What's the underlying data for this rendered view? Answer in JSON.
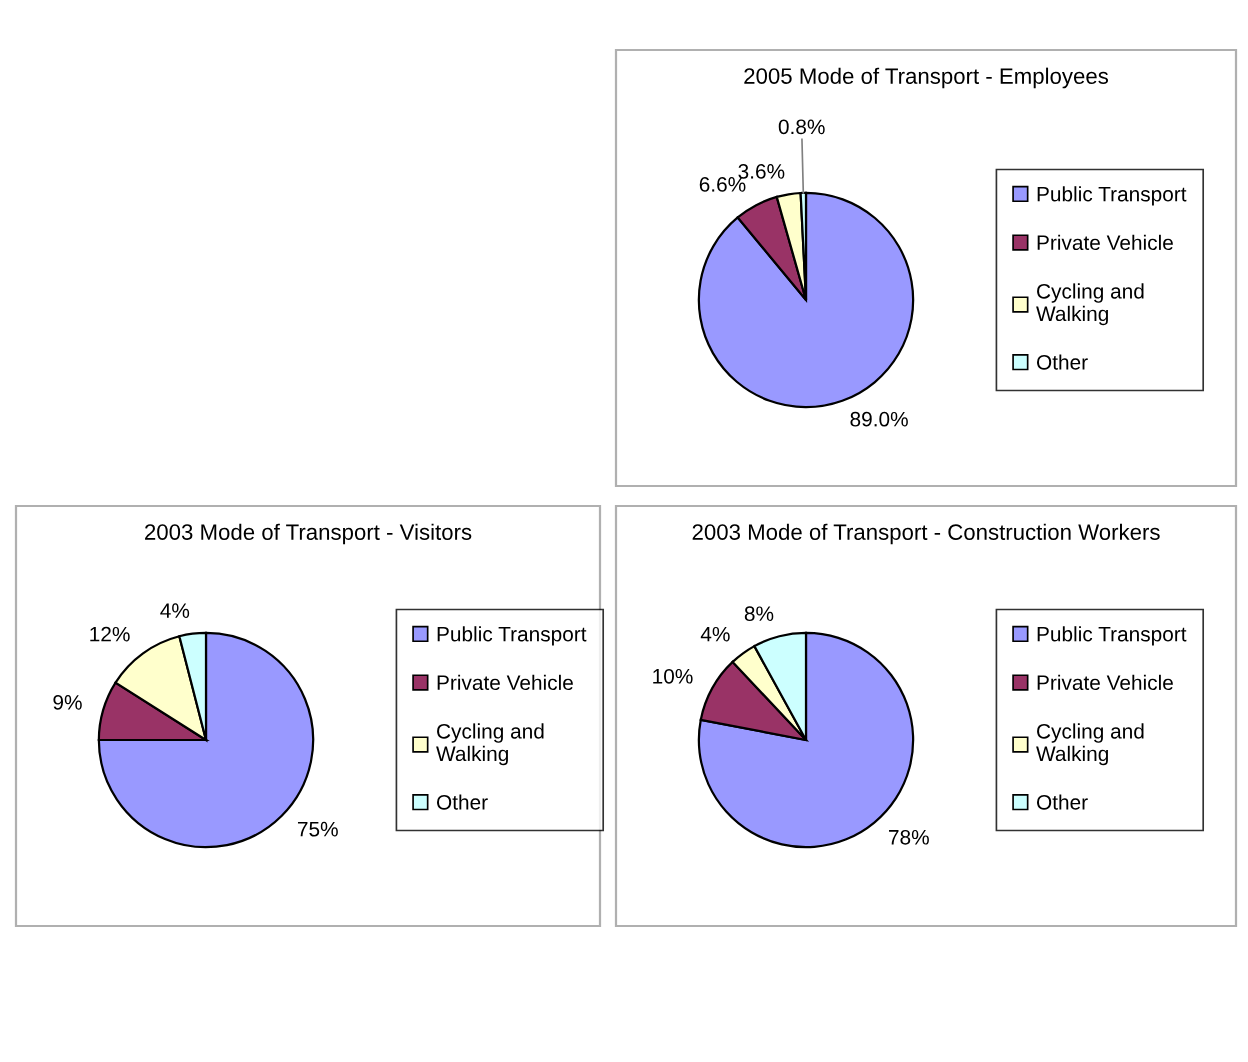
{
  "chart_data": [
    {
      "type": "pie",
      "title": "2005 Mode of Transport - Employees",
      "categories": [
        "Public Transport",
        "Private Vehicle",
        "Cycling and\nWalking",
        "Other"
      ],
      "values": [
        89.0,
        6.6,
        3.6,
        0.8
      ],
      "value_labels": [
        "89.0%",
        "6.6%",
        "3.6%",
        "0.8%"
      ],
      "colors": [
        "#9999ff",
        "#993366",
        "#ffffcc",
        "#ccffff"
      ],
      "legend": "right"
    },
    {
      "type": "pie",
      "title": "2003 Mode of Transport - Visitors",
      "categories": [
        "Public Transport",
        "Private Vehicle",
        "Cycling and\nWalking",
        "Other"
      ],
      "values": [
        75,
        9,
        12,
        4
      ],
      "value_labels": [
        "75%",
        "9%",
        "12%",
        "4%"
      ],
      "colors": [
        "#9999ff",
        "#993366",
        "#ffffcc",
        "#ccffff"
      ],
      "legend": "right"
    },
    {
      "type": "pie",
      "title": "2003 Mode of Transport - Construction Workers",
      "categories": [
        "Public Transport",
        "Private Vehicle",
        "Cycling and\nWalking",
        "Other"
      ],
      "values": [
        78,
        10,
        4,
        8
      ],
      "value_labels": [
        "78%",
        "10%",
        "4%",
        "8%"
      ],
      "colors": [
        "#9999ff",
        "#993366",
        "#ffffcc",
        "#ccffff"
      ],
      "legend": "right"
    }
  ]
}
